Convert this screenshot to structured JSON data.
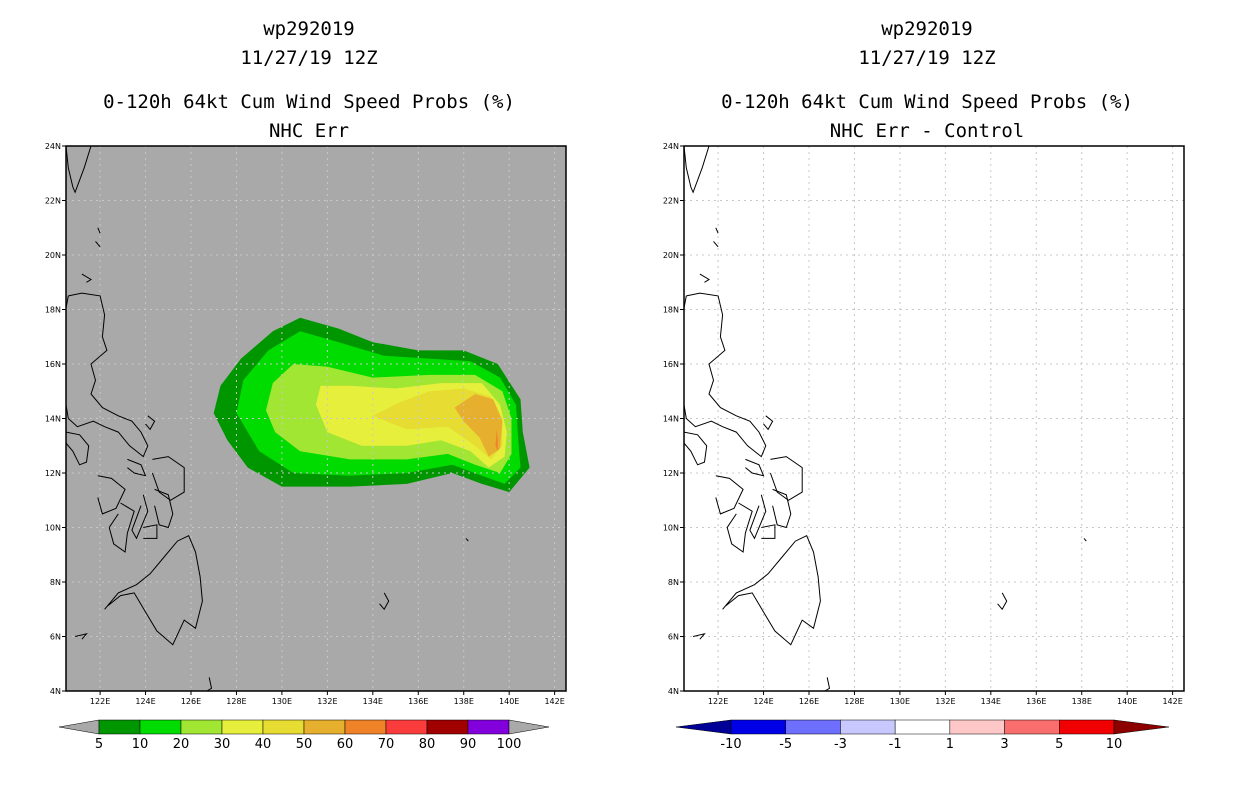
{
  "left": {
    "storm_id": "wp292019",
    "datetime": "11/27/19 12Z",
    "title": "0-120h 64kt Cum Wind Speed Probs (%)",
    "subtitle": "NHC Err",
    "background_color": "#a9a9a9",
    "colorbar": {
      "labels": [
        "5",
        "10",
        "20",
        "30",
        "40",
        "50",
        "60",
        "70",
        "80",
        "90",
        "100"
      ],
      "colors": [
        "#009600",
        "#00dc00",
        "#a0e632",
        "#e6f03c",
        "#e6dc32",
        "#e6af2d",
        "#f08228",
        "#fa3c3c",
        "#a00000",
        "#8200dc"
      ],
      "left_arrow_color": "#a9a9a9",
      "right_arrow_color": "#a9a9a9"
    }
  },
  "right": {
    "storm_id": "wp292019",
    "datetime": "11/27/19 12Z",
    "title": "0-120h 64kt Cum Wind Speed Probs (%)",
    "subtitle": "NHC Err - Control",
    "background_color": "#ffffff",
    "colorbar": {
      "labels": [
        "-10",
        "-5",
        "-3",
        "-1",
        "1",
        "3",
        "5",
        "10"
      ],
      "colors": [
        "#0000e6",
        "#6e6eff",
        "#c8c8ff",
        "#ffffff",
        "#ffc8c8",
        "#fa6e6e",
        "#f00000"
      ],
      "left_arrow_color": "#000096",
      "right_arrow_color": "#8c0000"
    }
  },
  "axes": {
    "lat_labels": [
      "24N",
      "22N",
      "20N",
      "18N",
      "16N",
      "14N",
      "12N",
      "10N",
      "8N",
      "6N",
      "4N"
    ],
    "lon_labels": [
      "122E",
      "124E",
      "126E",
      "128E",
      "130E",
      "132E",
      "134E",
      "136E",
      "138E",
      "140E",
      "142E"
    ],
    "lat_min": 4,
    "lat_max": 24,
    "lon_min": 120.5,
    "lon_max": 142.5
  },
  "probability_contours": [
    {
      "level": 5,
      "color": "#009600",
      "outline": [
        [
          127.0,
          14.2
        ],
        [
          127.3,
          15.2
        ],
        [
          128.2,
          16.2
        ],
        [
          129.6,
          17.2
        ],
        [
          130.8,
          17.7
        ],
        [
          132.5,
          17.3
        ],
        [
          134.0,
          16.8
        ],
        [
          136.0,
          16.5
        ],
        [
          138.0,
          16.5
        ],
        [
          139.5,
          16.0
        ],
        [
          140.5,
          14.7
        ],
        [
          140.6,
          13.5
        ],
        [
          140.9,
          12.2
        ],
        [
          140.0,
          11.3
        ],
        [
          138.8,
          11.6
        ],
        [
          137.5,
          12.0
        ],
        [
          135.5,
          11.6
        ],
        [
          133.0,
          11.5
        ],
        [
          130.0,
          11.5
        ],
        [
          128.5,
          12.2
        ],
        [
          127.6,
          13.2
        ]
      ]
    },
    {
      "level": 10,
      "color": "#00dc00",
      "outline": [
        [
          128.0,
          14.2
        ],
        [
          128.3,
          15.4
        ],
        [
          129.4,
          16.5
        ],
        [
          130.8,
          17.2
        ],
        [
          132.5,
          16.8
        ],
        [
          134.5,
          16.3
        ],
        [
          136.5,
          16.2
        ],
        [
          138.3,
          16.1
        ],
        [
          139.6,
          15.5
        ],
        [
          140.3,
          14.5
        ],
        [
          140.4,
          13.2
        ],
        [
          140.5,
          12.2
        ],
        [
          139.8,
          11.6
        ],
        [
          138.8,
          11.9
        ],
        [
          137.5,
          12.3
        ],
        [
          135.5,
          12.0
        ],
        [
          133.0,
          11.9
        ],
        [
          130.5,
          12.0
        ],
        [
          129.0,
          12.8
        ]
      ]
    },
    {
      "level": 20,
      "color": "#a0e632",
      "outline": [
        [
          129.3,
          14.3
        ],
        [
          129.6,
          15.3
        ],
        [
          130.5,
          16.0
        ],
        [
          132.0,
          15.9
        ],
        [
          134.0,
          15.5
        ],
        [
          136.5,
          15.6
        ],
        [
          138.5,
          15.6
        ],
        [
          139.7,
          15.0
        ],
        [
          140.1,
          14.0
        ],
        [
          140.1,
          12.7
        ],
        [
          139.6,
          12.0
        ],
        [
          138.5,
          12.3
        ],
        [
          137.3,
          12.7
        ],
        [
          135.5,
          12.5
        ],
        [
          133.0,
          12.5
        ],
        [
          130.8,
          12.8
        ],
        [
          129.7,
          13.5
        ]
      ]
    },
    {
      "level": 30,
      "color": "#e6f03c",
      "outline": [
        [
          131.5,
          14.5
        ],
        [
          131.7,
          15.2
        ],
        [
          133.0,
          15.2
        ],
        [
          135.0,
          15.1
        ],
        [
          137.0,
          15.3
        ],
        [
          138.8,
          15.3
        ],
        [
          139.6,
          14.5
        ],
        [
          139.9,
          13.5
        ],
        [
          139.8,
          12.6
        ],
        [
          139.1,
          12.2
        ],
        [
          138.3,
          12.8
        ],
        [
          137.0,
          13.2
        ],
        [
          135.5,
          13.0
        ],
        [
          133.5,
          13.0
        ],
        [
          132.0,
          13.5
        ]
      ]
    },
    {
      "level": 40,
      "color": "#e6dc32",
      "outline": [
        [
          134.0,
          14.1
        ],
        [
          135.2,
          14.6
        ],
        [
          136.5,
          15.0
        ],
        [
          138.0,
          15.1
        ],
        [
          139.2,
          14.8
        ],
        [
          139.7,
          14.0
        ],
        [
          139.7,
          13.0
        ],
        [
          139.2,
          12.5
        ],
        [
          138.5,
          13.0
        ],
        [
          137.3,
          13.7
        ],
        [
          135.5,
          13.6
        ]
      ]
    },
    {
      "level": 50,
      "color": "#e6af2d",
      "outline": [
        [
          137.6,
          14.4
        ],
        [
          138.5,
          14.9
        ],
        [
          139.3,
          14.7
        ],
        [
          139.7,
          13.9
        ],
        [
          139.6,
          12.9
        ],
        [
          139.1,
          12.6
        ],
        [
          138.7,
          13.3
        ],
        [
          138.0,
          13.9
        ]
      ]
    },
    {
      "level": 60,
      "color": "#f08228",
      "outline": [
        [
          139.45,
          13.6
        ],
        [
          139.5,
          13.2
        ],
        [
          139.5,
          12.8
        ],
        [
          139.4,
          13.0
        ]
      ]
    }
  ]
}
